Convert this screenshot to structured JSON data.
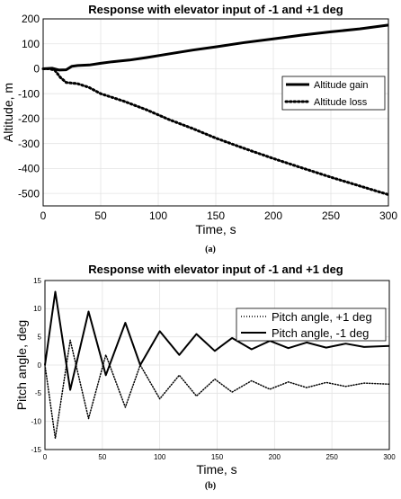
{
  "chart_data": [
    {
      "type": "line",
      "title": "Response with elevator input of -1 and +1 deg",
      "xlabel": "Time, s",
      "ylabel": "Altitude, m",
      "xlim": [
        0,
        300
      ],
      "ylim": [
        -550,
        200
      ],
      "x_ticks": [
        "0",
        "50",
        "100",
        "150",
        "200",
        "250",
        "300"
      ],
      "y_ticks": [
        "200",
        "100",
        "0",
        "-100",
        "-200",
        "-300",
        "-400",
        "-500"
      ],
      "grid": true,
      "legend_position": "right",
      "caption": "(a)",
      "series": [
        {
          "name": "Altitude gain",
          "style": "solid",
          "color": "#000000",
          "x": [
            0,
            8,
            14,
            20,
            25,
            30,
            40,
            50,
            60,
            75,
            90,
            110,
            130,
            150,
            175,
            200,
            225,
            250,
            275,
            300
          ],
          "y": [
            0,
            2,
            -5,
            -4,
            10,
            13,
            15,
            22,
            28,
            35,
            45,
            60,
            75,
            88,
            105,
            120,
            135,
            148,
            160,
            175
          ]
        },
        {
          "name": "Altitude loss",
          "style": "dotted",
          "color": "#000000",
          "x": [
            0,
            5,
            10,
            15,
            20,
            30,
            40,
            50,
            70,
            90,
            110,
            130,
            150,
            175,
            200,
            225,
            250,
            275,
            300
          ],
          "y": [
            0,
            0,
            -5,
            -35,
            -55,
            -60,
            -75,
            -100,
            -130,
            -165,
            -205,
            -240,
            -278,
            -320,
            -360,
            -398,
            -435,
            -470,
            -505
          ]
        }
      ]
    },
    {
      "type": "line",
      "title": "Response with elevator input of -1 and +1 deg",
      "xlabel": "Time, s",
      "ylabel": "Pitch angle, deg",
      "xlim": [
        0,
        300
      ],
      "ylim": [
        -15,
        15
      ],
      "x_ticks": [
        "0",
        "50",
        "100",
        "150",
        "200",
        "250",
        "300"
      ],
      "y_ticks": [
        "15",
        "10",
        "5",
        "0",
        "-5",
        "-10",
        "-15"
      ],
      "grid": true,
      "legend_position": "top-right",
      "caption": "(b)",
      "series": [
        {
          "name": "Pitch angle, +1 deg",
          "style": "dotted",
          "color": "#000000",
          "x": [
            0,
            9,
            22,
            38,
            53,
            70,
            83,
            100,
            117,
            132,
            148,
            163,
            180,
            196,
            212,
            228,
            245,
            262,
            278,
            300
          ],
          "y": [
            0,
            -13,
            4.4,
            -9.5,
            1.8,
            -7.5,
            0,
            -6,
            -1.8,
            -5.5,
            -2.5,
            -4.8,
            -2.8,
            -4.3,
            -3.0,
            -4.0,
            -3.1,
            -3.8,
            -3.2,
            -3.4
          ]
        },
        {
          "name": "Pitch angle, -1 deg",
          "style": "solid",
          "color": "#000000",
          "x": [
            0,
            9,
            22,
            38,
            53,
            70,
            83,
            100,
            117,
            132,
            148,
            163,
            180,
            196,
            212,
            228,
            245,
            262,
            278,
            300
          ],
          "y": [
            0,
            13,
            -4.4,
            9.5,
            -1.8,
            7.5,
            0,
            6,
            1.8,
            5.5,
            2.5,
            4.8,
            2.8,
            4.3,
            3.0,
            4.0,
            3.1,
            3.8,
            3.2,
            3.4
          ]
        }
      ]
    }
  ]
}
